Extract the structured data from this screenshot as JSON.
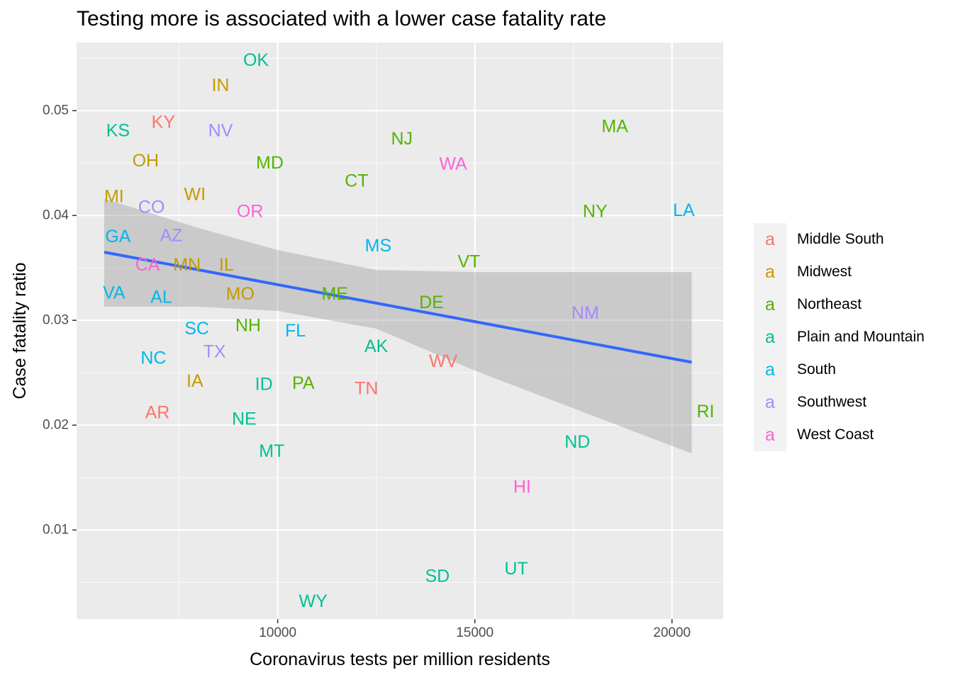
{
  "chart_data": {
    "type": "scatter",
    "title": "Testing more is associated with a lower case fatality rate",
    "xlabel": "Coronavirus tests per million residents",
    "ylabel": "Case fatality ratio",
    "xlim": [
      4900,
      21300
    ],
    "ylim": [
      0.0015,
      0.0565
    ],
    "xticks": [
      10000,
      15000,
      20000
    ],
    "xtick_labels": [
      "10000",
      "15000",
      "20000"
    ],
    "yticks": [
      0.01,
      0.02,
      0.03,
      0.04,
      0.05
    ],
    "ytick_labels": [
      "0.01",
      "0.02",
      "0.03",
      "0.04",
      "0.05"
    ],
    "grid": true,
    "legend_position": "right",
    "regions": [
      {
        "name": "Middle South",
        "color": "#F8766D"
      },
      {
        "name": "Midwest",
        "color": "#C49A00"
      },
      {
        "name": "Northeast",
        "color": "#53B400"
      },
      {
        "name": "Plain and Mountain",
        "color": "#00C094"
      },
      {
        "name": "South",
        "color": "#00B6EB"
      },
      {
        "name": "Southwest",
        "color": "#A58AFF"
      },
      {
        "name": "West Coast",
        "color": "#FB61D7"
      }
    ],
    "legend_key_glyph": "a",
    "points": [
      {
        "label": "OK",
        "region": "Plain and Mountain",
        "x": 9450,
        "y": 0.0548
      },
      {
        "label": "IN",
        "region": "Midwest",
        "x": 8550,
        "y": 0.0524
      },
      {
        "label": "KY",
        "region": "Middle South",
        "x": 7100,
        "y": 0.0489
      },
      {
        "label": "KS",
        "region": "Plain and Mountain",
        "x": 5950,
        "y": 0.0481
      },
      {
        "label": "NV",
        "region": "Southwest",
        "x": 8550,
        "y": 0.0481
      },
      {
        "label": "MA",
        "region": "Northeast",
        "x": 18550,
        "y": 0.0485
      },
      {
        "label": "NJ",
        "region": "Northeast",
        "x": 13150,
        "y": 0.0473
      },
      {
        "label": "OH",
        "region": "Midwest",
        "x": 6650,
        "y": 0.0452
      },
      {
        "label": "MD",
        "region": "Northeast",
        "x": 9800,
        "y": 0.045
      },
      {
        "label": "WA",
        "region": "West Coast",
        "x": 14450,
        "y": 0.0449
      },
      {
        "label": "CT",
        "region": "Northeast",
        "x": 12000,
        "y": 0.0433
      },
      {
        "label": "MI",
        "region": "Midwest",
        "x": 5850,
        "y": 0.0418
      },
      {
        "label": "WI",
        "region": "Midwest",
        "x": 7900,
        "y": 0.042
      },
      {
        "label": "CO",
        "region": "Southwest",
        "x": 6800,
        "y": 0.0408
      },
      {
        "label": "OR",
        "region": "West Coast",
        "x": 9300,
        "y": 0.0404
      },
      {
        "label": "NY",
        "region": "Northeast",
        "x": 18050,
        "y": 0.0404
      },
      {
        "label": "LA",
        "region": "South",
        "x": 20300,
        "y": 0.0405
      },
      {
        "label": "GA",
        "region": "South",
        "x": 5950,
        "y": 0.038
      },
      {
        "label": "AZ",
        "region": "Southwest",
        "x": 7300,
        "y": 0.0381
      },
      {
        "label": "MS",
        "region": "South",
        "x": 12550,
        "y": 0.0371
      },
      {
        "label": "VT",
        "region": "Northeast",
        "x": 14850,
        "y": 0.0356
      },
      {
        "label": "CA",
        "region": "West Coast",
        "x": 6700,
        "y": 0.0353
      },
      {
        "label": "MN",
        "region": "Midwest",
        "x": 7700,
        "y": 0.0353
      },
      {
        "label": "IL",
        "region": "Midwest",
        "x": 8700,
        "y": 0.0353
      },
      {
        "label": "VA",
        "region": "South",
        "x": 5850,
        "y": 0.0326
      },
      {
        "label": "MO",
        "region": "Midwest",
        "x": 9050,
        "y": 0.0325
      },
      {
        "label": "ME",
        "region": "Northeast",
        "x": 11450,
        "y": 0.0325
      },
      {
        "label": "AL",
        "region": "South",
        "x": 7050,
        "y": 0.0322
      },
      {
        "label": "DE",
        "region": "Northeast",
        "x": 13900,
        "y": 0.0317
      },
      {
        "label": "NM",
        "region": "Southwest",
        "x": 17800,
        "y": 0.0307
      },
      {
        "label": "NH",
        "region": "Northeast",
        "x": 9250,
        "y": 0.0295
      },
      {
        "label": "SC",
        "region": "South",
        "x": 7950,
        "y": 0.0292
      },
      {
        "label": "FL",
        "region": "South",
        "x": 10450,
        "y": 0.029
      },
      {
        "label": "AK",
        "region": "Plain and Mountain",
        "x": 12500,
        "y": 0.0275
      },
      {
        "label": "TX",
        "region": "Southwest",
        "x": 8400,
        "y": 0.027
      },
      {
        "label": "NC",
        "region": "South",
        "x": 6850,
        "y": 0.0264
      },
      {
        "label": "WV",
        "region": "Middle South",
        "x": 14200,
        "y": 0.0261
      },
      {
        "label": "IA",
        "region": "Midwest",
        "x": 7900,
        "y": 0.0242
      },
      {
        "label": "ID",
        "region": "Plain and Mountain",
        "x": 9650,
        "y": 0.0239
      },
      {
        "label": "PA",
        "region": "Northeast",
        "x": 10650,
        "y": 0.024
      },
      {
        "label": "TN",
        "region": "Middle South",
        "x": 12250,
        "y": 0.0235
      },
      {
        "label": "AR",
        "region": "Middle South",
        "x": 6950,
        "y": 0.0212
      },
      {
        "label": "RI",
        "region": "Northeast",
        "x": 20850,
        "y": 0.0213
      },
      {
        "label": "NE",
        "region": "Plain and Mountain",
        "x": 9150,
        "y": 0.0206
      },
      {
        "label": "ND",
        "region": "Plain and Mountain",
        "x": 17600,
        "y": 0.0184
      },
      {
        "label": "MT",
        "region": "Plain and Mountain",
        "x": 9850,
        "y": 0.0175
      },
      {
        "label": "HI",
        "region": "West Coast",
        "x": 16200,
        "y": 0.0141
      },
      {
        "label": "UT",
        "region": "Plain and Mountain",
        "x": 16050,
        "y": 0.0063
      },
      {
        "label": "SD",
        "region": "Plain and Mountain",
        "x": 14050,
        "y": 0.0056
      },
      {
        "label": "WY",
        "region": "Plain and Mountain",
        "x": 10900,
        "y": 0.0032
      }
    ],
    "trend_line": {
      "color": "#3366FF",
      "x": [
        5600,
        20500
      ],
      "y": [
        0.0365,
        0.026
      ]
    },
    "confidence_band": {
      "color": "#999999",
      "x": [
        5600,
        8000,
        10000,
        12500,
        15000,
        17500,
        20500
      ],
      "upper": [
        0.0416,
        0.0388,
        0.0367,
        0.0348,
        0.0346,
        0.0346,
        0.0346
      ],
      "lower": [
        0.0313,
        0.0313,
        0.0309,
        0.0292,
        0.0252,
        0.0216,
        0.0173
      ]
    }
  }
}
